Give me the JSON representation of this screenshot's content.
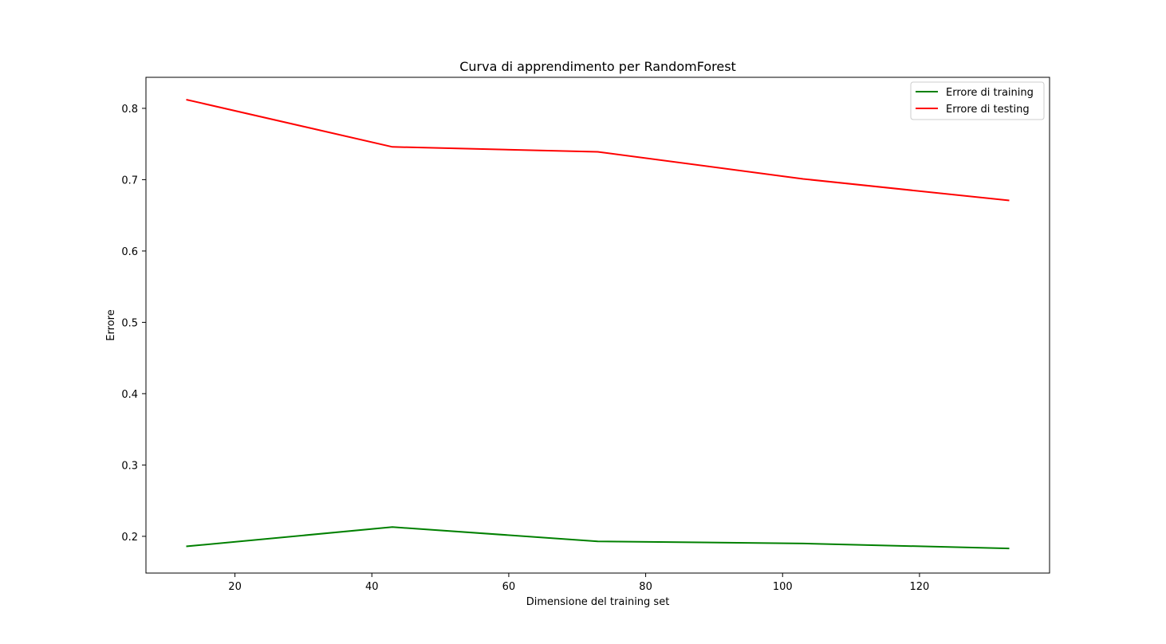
{
  "chart_data": {
    "type": "line",
    "title": "Curva di apprendimento per RandomForest",
    "xlabel": "Dimensione del training set",
    "ylabel": "Errore",
    "x": [
      13,
      43,
      73,
      103,
      133
    ],
    "series": [
      {
        "name": "Errore di training",
        "color": "#008000",
        "values": [
          0.186,
          0.213,
          0.193,
          0.19,
          0.183
        ]
      },
      {
        "name": "Errore di testing",
        "color": "#ff0000",
        "values": [
          0.812,
          0.746,
          0.739,
          0.701,
          0.671
        ]
      }
    ],
    "xlim": [
      7,
      139
    ],
    "ylim": [
      0.1485,
      0.8435
    ],
    "xticks": [
      20,
      40,
      60,
      80,
      100,
      120
    ],
    "yticks": [
      0.2,
      0.3,
      0.4,
      0.5,
      0.6,
      0.7,
      0.8
    ],
    "grid": false,
    "legend_position": "top-right"
  }
}
